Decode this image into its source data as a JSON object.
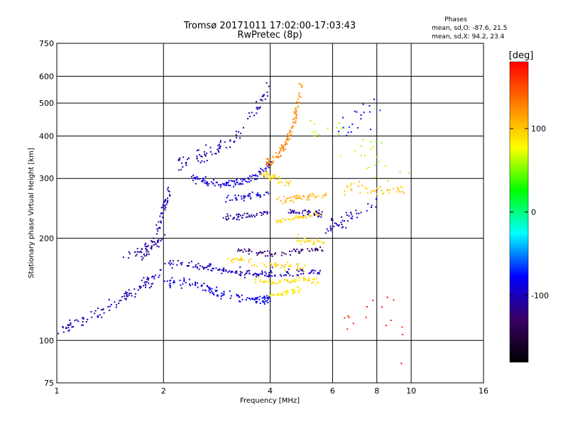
{
  "chart_data": {
    "type": "scatter",
    "title": "Tromsø 20171011 17:02:00-17:03:43",
    "subtitle": "RwPretec (8p)",
    "xlabel": "Frequency [MHz]",
    "ylabel": "Stationary phase Virtual Height [km]",
    "x_scale": "log",
    "y_scale": "log",
    "xlim": [
      1,
      16
    ],
    "ylim": [
      75,
      750
    ],
    "x_ticks": [
      1,
      2,
      4,
      6,
      8,
      10,
      16
    ],
    "x_tick_labels": [
      "1",
      "2",
      "4",
      "6",
      "8",
      "10",
      "16"
    ],
    "y_ticks": [
      75,
      100,
      200,
      300,
      400,
      500,
      600,
      750
    ],
    "y_tick_labels": [
      "75",
      "100",
      "200",
      "300",
      "400",
      "500",
      "600",
      "750"
    ],
    "grid": true,
    "phase_info": {
      "heading": "Phases",
      "line_o": "mean, sd,O: -87.6, 21.5",
      "line_x": "mean, sd,X:  94.2, 23.4"
    },
    "colorbar": {
      "label": "[deg]",
      "range": [
        -180,
        180
      ],
      "ticks": [
        100,
        0,
        -100
      ],
      "tick_labels": [
        "100",
        "0",
        "-100"
      ],
      "colors": [
        "#000000",
        "#3a0066",
        "#0000ff",
        "#00ffff",
        "#00ff00",
        "#ffff00",
        "#ff8000",
        "#ff0000"
      ]
    },
    "traces": [
      {
        "f": [
          1.0,
          1.25,
          1.5,
          1.75,
          2.0
        ],
        "h": [
          105,
          118,
          132,
          145,
          160
        ],
        "phase": -100,
        "spread": 0.06,
        "n": 110
      },
      {
        "f": [
          1.75,
          1.9,
          2.0,
          2.08
        ],
        "h": [
          175,
          200,
          240,
          280
        ],
        "phase": -105,
        "spread": 0.04,
        "n": 60
      },
      {
        "f": [
          1.55,
          1.8,
          2.0
        ],
        "h": [
          178,
          188,
          198
        ],
        "phase": -110,
        "spread": 0.06,
        "n": 40
      },
      {
        "f": [
          2.0,
          2.5,
          3.0,
          3.5,
          4.0
        ],
        "h": [
          150,
          145,
          135,
          132,
          132
        ],
        "phase": -85,
        "spread": 0.05,
        "n": 120
      },
      {
        "f": [
          2.05,
          2.5,
          3.0,
          3.5,
          4.0
        ],
        "h": [
          170,
          165,
          160,
          158,
          157
        ],
        "phase": -100,
        "spread": 0.05,
        "n": 100
      },
      {
        "f": [
          2.4,
          2.8,
          3.2,
          3.6,
          4.0
        ],
        "h": [
          300,
          290,
          290,
          300,
          330
        ],
        "phase": -90,
        "spread": 0.04,
        "n": 110
      },
      {
        "f": [
          2.2,
          2.7,
          3.2,
          3.6,
          3.95
        ],
        "h": [
          330,
          360,
          400,
          470,
          560
        ],
        "phase": -105,
        "spread": 0.08,
        "n": 90
      },
      {
        "f": [
          2.9,
          3.3,
          3.7,
          4.0
        ],
        "h": [
          230,
          232,
          235,
          238
        ],
        "phase": -110,
        "spread": 0.03,
        "n": 50
      },
      {
        "f": [
          3.0,
          3.5,
          4.0
        ],
        "h": [
          260,
          265,
          270
        ],
        "phase": -90,
        "spread": 0.04,
        "n": 40
      },
      {
        "f": [
          3.2,
          3.6,
          4.0,
          4.5,
          5.0,
          5.6
        ],
        "h": [
          185,
          182,
          180,
          182,
          184,
          186
        ],
        "phase": -125,
        "spread": 0.03,
        "n": 70
      },
      {
        "f": [
          3.0,
          3.5,
          4.0,
          4.5,
          5.0
        ],
        "h": [
          175,
          170,
          168,
          166,
          164
        ],
        "phase": 95,
        "spread": 0.04,
        "n": 60
      },
      {
        "f": [
          3.6,
          4.1,
          4.6,
          5.0,
          5.5
        ],
        "h": [
          150,
          148,
          150,
          151,
          150
        ],
        "phase": 90,
        "spread": 0.04,
        "n": 60
      },
      {
        "f": [
          3.6,
          4.1,
          4.6,
          5.1,
          5.6
        ],
        "h": [
          155,
          157,
          158,
          160,
          158
        ],
        "phase": -95,
        "spread": 0.03,
        "n": 50
      },
      {
        "f": [
          4.0,
          4.3,
          4.6,
          4.9
        ],
        "h": [
          135,
          136,
          140,
          142
        ],
        "phase": 85,
        "spread": 0.03,
        "n": 40
      },
      {
        "f": [
          3.9,
          4.2,
          4.45,
          4.7,
          4.9
        ],
        "h": [
          330,
          350,
          380,
          450,
          560
        ],
        "phase": 125,
        "spread": 0.04,
        "n": 110
      },
      {
        "f": [
          3.8,
          4.1,
          4.5
        ],
        "h": [
          310,
          300,
          290
        ],
        "phase": 95,
        "spread": 0.05,
        "n": 40
      },
      {
        "f": [
          4.2,
          4.6,
          5.0,
          5.6
        ],
        "h": [
          225,
          228,
          232,
          236
        ],
        "phase": 95,
        "spread": 0.03,
        "n": 50
      },
      {
        "f": [
          4.5,
          5.0,
          5.6
        ],
        "h": [
          240,
          238,
          236
        ],
        "phase": -110,
        "spread": 0.03,
        "n": 40
      },
      {
        "f": [
          4.2,
          4.7,
          5.2,
          5.8
        ],
        "h": [
          258,
          262,
          266,
          270
        ],
        "phase": 110,
        "spread": 0.04,
        "n": 50
      },
      {
        "f": [
          4.7,
          5.2,
          5.7
        ],
        "h": [
          200,
          196,
          194
        ],
        "phase": 90,
        "spread": 0.04,
        "n": 30
      },
      {
        "f": [
          5.6,
          6.3,
          7.0,
          8.0
        ],
        "h": [
          210,
          220,
          235,
          255
        ],
        "phase": -100,
        "spread": 0.07,
        "n": 45
      },
      {
        "f": [
          6.5,
          7.3,
          8.0,
          9.0,
          9.5
        ],
        "h": [
          280,
          285,
          275,
          282,
          280
        ],
        "phase": 100,
        "spread": 0.06,
        "n": 40
      },
      {
        "f": [
          4.8,
          5.5,
          6.5,
          7.5,
          8.5,
          10
        ],
        "h": [
          470,
          420,
          380,
          350,
          320,
          300
        ],
        "phase": 60,
        "spread": 0.2,
        "n": 35
      },
      {
        "f": [
          6.2,
          6.8,
          7.5,
          8.2
        ],
        "h": [
          420,
          440,
          460,
          480
        ],
        "phase": -80,
        "spread": 0.18,
        "n": 20
      },
      {
        "f": [
          6.3,
          8.0,
          10.0
        ],
        "h": [
          110,
          130,
          90
        ],
        "phase": 170,
        "spread": 0.2,
        "n": 16
      }
    ]
  }
}
